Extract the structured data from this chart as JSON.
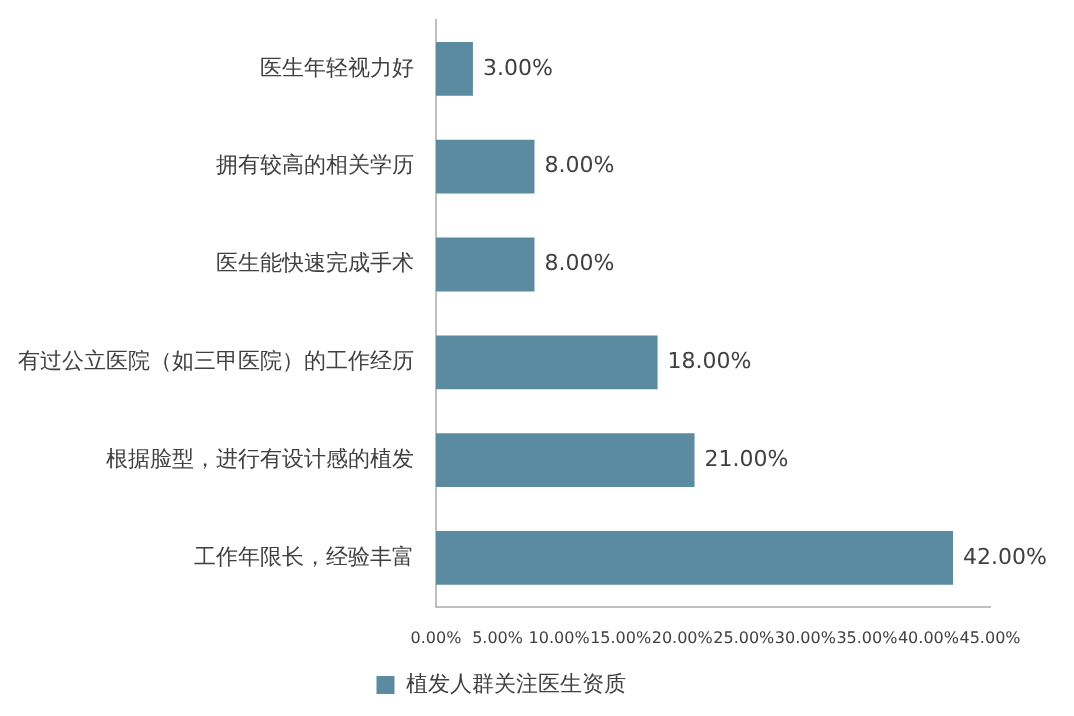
{
  "chart_data": {
    "type": "bar",
    "orientation": "horizontal",
    "categories": [
      "医生年轻视力好",
      "拥有较高的相关学历",
      "医生能快速完成手术",
      "有过公立医院（如三甲医院）的工作经历",
      "根据脸型，进行有设计感的植发",
      "工作年限长，经验丰富"
    ],
    "series": [
      {
        "name": "植发人群关注医生资质",
        "color": "#5b8ba0",
        "values": [
          3,
          8,
          8,
          18,
          21,
          42
        ],
        "value_labels": [
          "3.00%",
          "8.00%",
          "8.00%",
          "18.00%",
          "21.00%",
          "42.00%"
        ]
      }
    ],
    "xlim": [
      0,
      45
    ],
    "xticks": [
      {
        "value": 0,
        "label": "0.00%"
      },
      {
        "value": 5,
        "label": "5.00%"
      },
      {
        "value": 10,
        "label": "10.00%"
      },
      {
        "value": 15,
        "label": "15.00%"
      },
      {
        "value": 20,
        "label": "20.00%"
      },
      {
        "value": 25,
        "label": "25.00%"
      },
      {
        "value": 30,
        "label": "30.00%"
      },
      {
        "value": 35,
        "label": "35.00%"
      },
      {
        "value": 40,
        "label": "40.00%"
      },
      {
        "value": 45,
        "label": "45.00%"
      }
    ],
    "grid": false,
    "legend": "bottom"
  }
}
